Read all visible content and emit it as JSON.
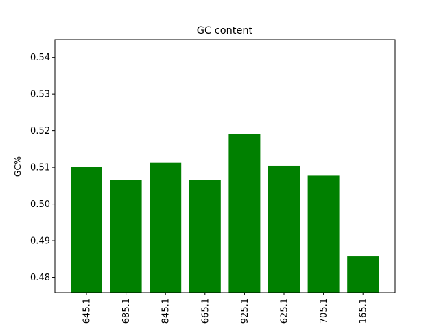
{
  "chart_data": {
    "type": "bar",
    "title": "GC content",
    "xlabel": "",
    "ylabel": "GC%",
    "categories": [
      "645.1",
      "685.1",
      "845.1",
      "665.1",
      "925.1",
      "625.1",
      "705.1",
      "165.1"
    ],
    "values": [
      0.5101,
      0.5066,
      0.5112,
      0.5066,
      0.519,
      0.5104,
      0.5077,
      0.4857
    ],
    "ylim": [
      0.4758,
      0.5448
    ],
    "yticks": [
      "0.48",
      "0.49",
      "0.50",
      "0.51",
      "0.52",
      "0.53",
      "0.54"
    ],
    "ytick_values": [
      0.48,
      0.49,
      0.5,
      0.51,
      0.52,
      0.53,
      0.54
    ],
    "bar_color": "#008000",
    "grid": false,
    "legend": "none"
  }
}
